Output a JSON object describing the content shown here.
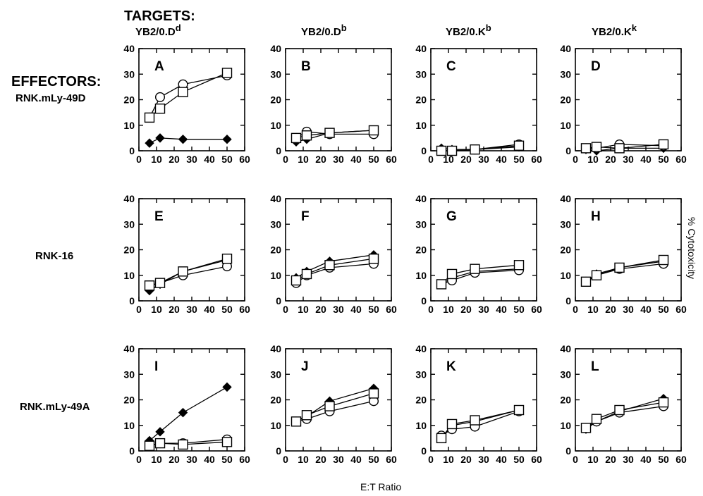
{
  "headers": {
    "targets_title": "TARGETS:",
    "effectors_title": "EFFECTORS:",
    "targets": [
      {
        "base": "YB2/0.D",
        "sup": "d"
      },
      {
        "base": "YB2/0.D",
        "sup": "b"
      },
      {
        "base": "YB2/0.K",
        "sup": "b"
      },
      {
        "base": "YB2/0.K",
        "sup": "k"
      }
    ],
    "effectors": [
      "RNK.mLy-49D",
      "RNK-16",
      "RNK.mLy-49A"
    ]
  },
  "axes": {
    "xlabel": "E:T Ratio",
    "ylabel": "% Cytotoxicity"
  },
  "chart_data": [
    {
      "type": "line",
      "panel": "A",
      "target": "YB2/0.Dd",
      "effector": "RNK.mLy-49D",
      "x": [
        6,
        12,
        25,
        50
      ],
      "xlim": [
        0,
        60
      ],
      "ylim": [
        0,
        40
      ],
      "xticks": [
        0,
        10,
        20,
        30,
        40,
        50,
        60
      ],
      "yticks": [
        0,
        10,
        20,
        30,
        40
      ],
      "series": [
        {
          "marker": "diamond-filled",
          "values": [
            3,
            5,
            4.5,
            4.5
          ]
        },
        {
          "marker": "circle-open",
          "values": [
            13,
            21,
            26,
            29.5
          ]
        },
        {
          "marker": "square-open",
          "values": [
            13,
            16.5,
            23,
            30.5
          ]
        }
      ]
    },
    {
      "type": "line",
      "panel": "B",
      "target": "YB2/0.Db",
      "effector": "RNK.mLy-49D",
      "x": [
        6,
        12,
        25,
        50
      ],
      "xlim": [
        0,
        60
      ],
      "ylim": [
        0,
        40
      ],
      "xticks": [
        0,
        10,
        20,
        30,
        40,
        50,
        60
      ],
      "yticks": [
        0,
        10,
        20,
        30,
        40
      ],
      "series": [
        {
          "marker": "diamond-filled",
          "values": [
            3.5,
            4.5,
            7,
            8
          ]
        },
        {
          "marker": "circle-open",
          "values": [
            5,
            7.5,
            6.5,
            6.5
          ]
        },
        {
          "marker": "square-open",
          "values": [
            5,
            6,
            7,
            8
          ]
        }
      ]
    },
    {
      "type": "line",
      "panel": "C",
      "target": "YB2/0.Kb",
      "effector": "RNK.mLy-49D",
      "x": [
        6,
        12,
        25,
        50
      ],
      "xlim": [
        0,
        60
      ],
      "ylim": [
        0,
        40
      ],
      "xticks": [
        0,
        10,
        20,
        30,
        40,
        50,
        60
      ],
      "yticks": [
        0,
        10,
        20,
        30,
        40
      ],
      "series": [
        {
          "marker": "diamond-filled",
          "values": [
            1,
            0.5,
            0.5,
            1.5
          ]
        },
        {
          "marker": "circle-open",
          "values": [
            0,
            0,
            0.5,
            2.5
          ]
        },
        {
          "marker": "square-open",
          "values": [
            0,
            0,
            0.5,
            2
          ]
        }
      ]
    },
    {
      "type": "line",
      "panel": "D",
      "target": "YB2/0.Kk",
      "effector": "RNK.mLy-49D",
      "x": [
        6,
        12,
        25,
        50
      ],
      "xlim": [
        0,
        60
      ],
      "ylim": [
        0,
        40
      ],
      "xticks": [
        0,
        10,
        20,
        30,
        40,
        50,
        60
      ],
      "yticks": [
        0,
        10,
        20,
        30,
        40
      ],
      "series": [
        {
          "marker": "diamond-filled",
          "values": [
            0.5,
            0,
            1,
            1
          ]
        },
        {
          "marker": "circle-open",
          "values": [
            1,
            1,
            2.5,
            2
          ]
        },
        {
          "marker": "square-open",
          "values": [
            1,
            1.5,
            1,
            2.5
          ]
        }
      ]
    },
    {
      "type": "line",
      "panel": "E",
      "target": "YB2/0.Dd",
      "effector": "RNK-16",
      "x": [
        6,
        12,
        25,
        50
      ],
      "xlim": [
        0,
        60
      ],
      "ylim": [
        0,
        40
      ],
      "xticks": [
        0,
        10,
        20,
        30,
        40,
        50,
        60
      ],
      "yticks": [
        0,
        10,
        20,
        30,
        40
      ],
      "series": [
        {
          "marker": "diamond-filled",
          "values": [
            4,
            6.5,
            11.5,
            16
          ]
        },
        {
          "marker": "circle-open",
          "values": [
            6,
            7,
            10,
            13.5
          ]
        },
        {
          "marker": "square-open",
          "values": [
            6,
            7,
            11.5,
            16.5
          ]
        }
      ]
    },
    {
      "type": "line",
      "panel": "F",
      "target": "YB2/0.Db",
      "effector": "RNK-16",
      "x": [
        6,
        12,
        25,
        50
      ],
      "xlim": [
        0,
        60
      ],
      "ylim": [
        0,
        40
      ],
      "xticks": [
        0,
        10,
        20,
        30,
        40,
        50,
        60
      ],
      "yticks": [
        0,
        10,
        20,
        30,
        40
      ],
      "series": [
        {
          "marker": "diamond-filled",
          "values": [
            9,
            11.5,
            15.5,
            18
          ]
        },
        {
          "marker": "circle-open",
          "values": [
            7,
            10,
            13,
            14.5
          ]
        },
        {
          "marker": "square-open",
          "values": [
            8,
            10.5,
            14,
            16.5
          ]
        }
      ]
    },
    {
      "type": "line",
      "panel": "G",
      "target": "YB2/0.Kb",
      "effector": "RNK-16",
      "x": [
        6,
        12,
        25,
        50
      ],
      "xlim": [
        0,
        60
      ],
      "ylim": [
        0,
        40
      ],
      "xticks": [
        0,
        10,
        20,
        30,
        40,
        50,
        60
      ],
      "yticks": [
        0,
        10,
        20,
        30,
        40
      ],
      "series": [
        {
          "marker": "diamond-filled",
          "values": [
            6.5,
            9,
            11.5,
            12.5
          ]
        },
        {
          "marker": "circle-open",
          "values": [
            6.5,
            8,
            11,
            12
          ]
        },
        {
          "marker": "square-open",
          "values": [
            6.5,
            10.5,
            12.5,
            14
          ]
        }
      ]
    },
    {
      "type": "line",
      "panel": "H",
      "target": "YB2/0.Kk",
      "effector": "RNK-16",
      "x": [
        6,
        12,
        25,
        50
      ],
      "xlim": [
        0,
        60
      ],
      "ylim": [
        0,
        40
      ],
      "xticks": [
        0,
        10,
        20,
        30,
        40,
        50,
        60
      ],
      "yticks": [
        0,
        10,
        20,
        30,
        40
      ],
      "series": [
        {
          "marker": "diamond-filled",
          "values": [
            7.5,
            10.5,
            13,
            15.5
          ]
        },
        {
          "marker": "circle-open",
          "values": [
            7.5,
            10,
            12.5,
            14.5
          ]
        },
        {
          "marker": "square-open",
          "values": [
            7.5,
            10,
            13,
            16
          ]
        }
      ]
    },
    {
      "type": "line",
      "panel": "I",
      "target": "YB2/0.Dd",
      "effector": "RNK.mLy-49A",
      "x": [
        6,
        12,
        25,
        50
      ],
      "xlim": [
        0,
        60
      ],
      "ylim": [
        0,
        40
      ],
      "xticks": [
        0,
        10,
        20,
        30,
        40,
        50,
        60
      ],
      "yticks": [
        0,
        10,
        20,
        30,
        40
      ],
      "series": [
        {
          "marker": "diamond-filled",
          "values": [
            4,
            7.5,
            15,
            25
          ]
        },
        {
          "marker": "circle-open",
          "values": [
            2,
            3,
            3,
            4.5
          ]
        },
        {
          "marker": "square-open",
          "values": [
            2,
            3,
            2.5,
            3.5
          ]
        }
      ]
    },
    {
      "type": "line",
      "panel": "J",
      "target": "YB2/0.Db",
      "effector": "RNK.mLy-49A",
      "x": [
        6,
        12,
        25,
        50
      ],
      "xlim": [
        0,
        60
      ],
      "ylim": [
        0,
        40
      ],
      "xticks": [
        0,
        10,
        20,
        30,
        40,
        50,
        60
      ],
      "yticks": [
        0,
        10,
        20,
        30,
        40
      ],
      "series": [
        {
          "marker": "diamond-filled",
          "values": [
            11.5,
            13.5,
            19.5,
            24.5
          ]
        },
        {
          "marker": "circle-open",
          "values": [
            11.5,
            12.5,
            15.5,
            19.5
          ]
        },
        {
          "marker": "square-open",
          "values": [
            11.5,
            14,
            17.5,
            22.5
          ]
        }
      ]
    },
    {
      "type": "line",
      "panel": "K",
      "target": "YB2/0.Kb",
      "effector": "RNK.mLy-49A",
      "x": [
        6,
        12,
        25,
        50
      ],
      "xlim": [
        0,
        60
      ],
      "ylim": [
        0,
        40
      ],
      "xticks": [
        0,
        10,
        20,
        30,
        40,
        50,
        60
      ],
      "yticks": [
        0,
        10,
        20,
        30,
        40
      ],
      "series": [
        {
          "marker": "diamond-filled",
          "values": [
            5,
            10,
            11.5,
            16
          ]
        },
        {
          "marker": "circle-open",
          "values": [
            6,
            8.5,
            9.5,
            15.5
          ]
        },
        {
          "marker": "square-open",
          "values": [
            5,
            10.5,
            12,
            16
          ]
        }
      ]
    },
    {
      "type": "line",
      "panel": "L",
      "target": "YB2/0.Kk",
      "effector": "RNK.mLy-49A",
      "x": [
        6,
        12,
        25,
        50
      ],
      "xlim": [
        0,
        60
      ],
      "ylim": [
        0,
        40
      ],
      "xticks": [
        0,
        10,
        20,
        30,
        40,
        50,
        60
      ],
      "yticks": [
        0,
        10,
        20,
        30,
        40
      ],
      "series": [
        {
          "marker": "diamond-filled",
          "values": [
            8.5,
            11.5,
            15.5,
            20.5
          ]
        },
        {
          "marker": "circle-open",
          "values": [
            9,
            11.5,
            15,
            17.5
          ]
        },
        {
          "marker": "square-open",
          "values": [
            9,
            12.5,
            16,
            19
          ]
        }
      ]
    }
  ]
}
